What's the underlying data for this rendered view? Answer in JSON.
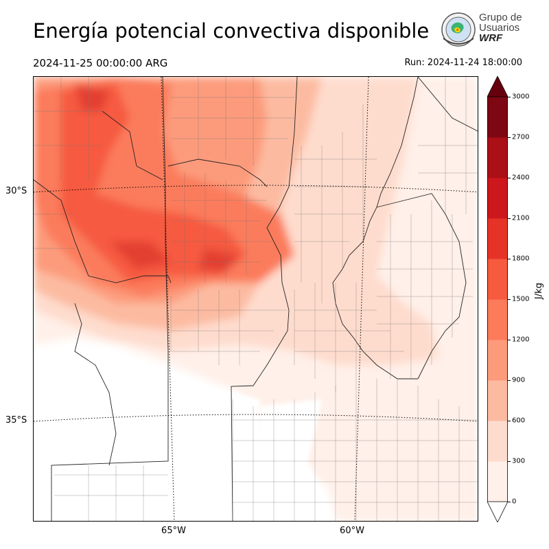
{
  "title": "Energía potencial convectiva disponible",
  "valid_time": "2024-11-25 00:00:00 ARG",
  "run_time": "Run: 2024-11-24 18:00:00",
  "logo": {
    "line1": "Grupo de",
    "line2": "Usuarios",
    "line3": "WRF"
  },
  "map": {
    "lat_labels": [
      "30°S",
      "35°S"
    ],
    "lon_labels": [
      "65°W",
      "60°W"
    ],
    "field": "CAPE",
    "region": "Centro de Argentina"
  },
  "colorbar": {
    "unit": "J/kg",
    "ticks": [
      "0",
      "300",
      "600",
      "900",
      "1200",
      "1500",
      "1800",
      "2100",
      "2400",
      "2700",
      "3000"
    ],
    "colors": [
      "#fff0e9",
      "#fedccd",
      "#fcbba1",
      "#fc9b7c",
      "#fb7b5b",
      "#f65a3f",
      "#e63328",
      "#cc181d",
      "#ab1016",
      "#7d0712"
    ],
    "extend": "both",
    "under_color": "#ffffff",
    "over_color": "#67000d"
  }
}
